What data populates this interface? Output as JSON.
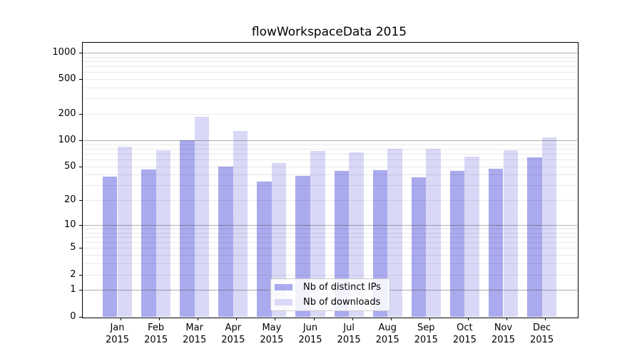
{
  "title": "flowWorkspaceData 2015",
  "chart_data": {
    "type": "bar",
    "title": "flowWorkspaceData 2015",
    "categories": [
      "Jan",
      "Feb",
      "Mar",
      "Apr",
      "May",
      "Jun",
      "Jul",
      "Aug",
      "Sep",
      "Oct",
      "Nov",
      "Dec"
    ],
    "year_label": "2015",
    "series": [
      {
        "name": "Nb of distinct IPs",
        "key": "distinct-ips",
        "color": "#aaaaee",
        "values": [
          38,
          46,
          100,
          50,
          33,
          39,
          44,
          45,
          37,
          44,
          47,
          64
        ]
      },
      {
        "name": "Nb of downloads",
        "key": "downloads",
        "color": "#d9d9f7",
        "values": [
          85,
          77,
          185,
          128,
          55,
          76,
          72,
          79,
          80,
          65,
          77,
          108
        ]
      }
    ],
    "xlabel": "",
    "ylabel": "",
    "yscale": "log1p",
    "ylim": [
      0,
      1300
    ],
    "yticks": [
      0,
      1,
      2,
      5,
      10,
      20,
      50,
      100,
      200,
      500,
      1000
    ],
    "ytick_labels": [
      "0",
      "1",
      "2",
      "5",
      "10",
      "20",
      "50",
      "100",
      "200",
      "500",
      "1000"
    ],
    "grid": {
      "major_values": [
        1,
        10,
        100,
        1000
      ],
      "minor_decades": [
        1,
        10,
        100
      ],
      "orientation": "horizontal",
      "drawn_over_bars": true
    },
    "legend_position": "lower-center",
    "colors": {
      "major_grid": "#a8a8a8",
      "minor_grid": "#e9e9e9",
      "axis": "#000000",
      "legend_border": "#cccccc"
    }
  }
}
